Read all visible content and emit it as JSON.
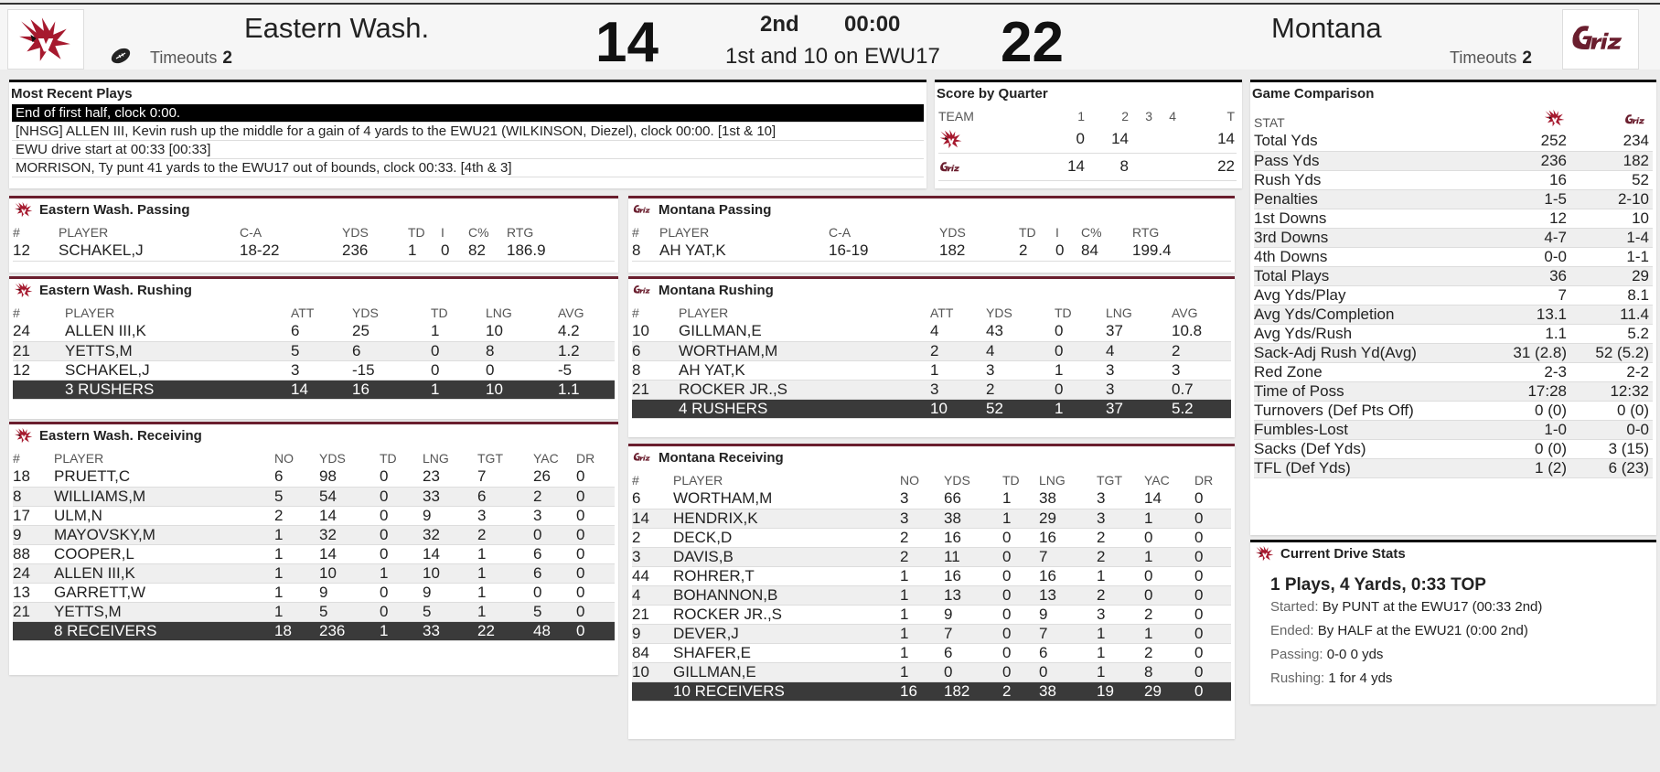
{
  "scoreboard": {
    "away": {
      "name": "Eastern Wash.",
      "score": "14",
      "timeouts_label": "Timeouts",
      "timeouts": "2"
    },
    "home": {
      "name": "Montana",
      "score": "22",
      "timeouts_label": "Timeouts",
      "timeouts": "2"
    },
    "period": "2nd",
    "clock": "00:00",
    "situation": "1st and 10 on EWU17"
  },
  "colors": {
    "ewu_red": "#a6192e",
    "griz_maroon": "#6a1e2e",
    "total_row": "#3a3a3a"
  },
  "recent_plays": {
    "title": "Most Recent Plays",
    "plays": [
      "End of first half, clock 0:00.",
      "[NHSG] ALLEN III, Kevin rush up the middle for a gain of 4 yards to the EWU21 (WILKINSON, Diezel), clock 00:00. [1st & 10]",
      "EWU drive start at 00:33 [00:33]",
      "MORRISON, Ty punt 41 yards to the EWU17 out of bounds, clock 00:33. [4th & 3]"
    ]
  },
  "score_by_quarter": {
    "title": "Score by Quarter",
    "headers": [
      "TEAM",
      "1",
      "2",
      "3",
      "4",
      "T"
    ],
    "rows": [
      {
        "q1": "0",
        "q2": "14",
        "q3": "",
        "q4": "",
        "t": "14"
      },
      {
        "q1": "14",
        "q2": "8",
        "q3": "",
        "q4": "",
        "t": "22"
      }
    ]
  },
  "ewu_passing": {
    "title": "Eastern Wash. Passing",
    "headers": [
      "#",
      "PLAYER",
      "C-A",
      "YDS",
      "TD",
      "I",
      "C%",
      "RTG"
    ],
    "rows": [
      [
        "12",
        "SCHAKEL,J",
        "18-22",
        "236",
        "1",
        "0",
        "82",
        "186.9"
      ]
    ]
  },
  "mt_passing": {
    "title": "Montana Passing",
    "headers": [
      "#",
      "PLAYER",
      "C-A",
      "YDS",
      "TD",
      "I",
      "C%",
      "RTG"
    ],
    "rows": [
      [
        "8",
        "AH YAT,K",
        "16-19",
        "182",
        "2",
        "0",
        "84",
        "199.4"
      ]
    ]
  },
  "ewu_rushing": {
    "title": "Eastern Wash. Rushing",
    "headers": [
      "#",
      "PLAYER",
      "ATT",
      "YDS",
      "TD",
      "LNG",
      "AVG"
    ],
    "rows": [
      [
        "24",
        "ALLEN III,K",
        "6",
        "25",
        "1",
        "10",
        "4.2"
      ],
      [
        "21",
        "YETTS,M",
        "5",
        "6",
        "0",
        "8",
        "1.2"
      ],
      [
        "12",
        "SCHAKEL,J",
        "3",
        "-15",
        "0",
        "0",
        "-5"
      ]
    ],
    "total": [
      "",
      "3 RUSHERS",
      "14",
      "16",
      "1",
      "10",
      "1.1"
    ]
  },
  "mt_rushing": {
    "title": "Montana Rushing",
    "headers": [
      "#",
      "PLAYER",
      "ATT",
      "YDS",
      "TD",
      "LNG",
      "AVG"
    ],
    "rows": [
      [
        "10",
        "GILLMAN,E",
        "4",
        "43",
        "0",
        "37",
        "10.8"
      ],
      [
        "6",
        "WORTHAM,M",
        "2",
        "4",
        "0",
        "4",
        "2"
      ],
      [
        "8",
        "AH YAT,K",
        "1",
        "3",
        "1",
        "3",
        "3"
      ],
      [
        "21",
        "ROCKER JR.,S",
        "3",
        "2",
        "0",
        "3",
        "0.7"
      ]
    ],
    "total": [
      "",
      "4 RUSHERS",
      "10",
      "52",
      "1",
      "37",
      "5.2"
    ]
  },
  "ewu_receiving": {
    "title": "Eastern Wash. Receiving",
    "headers": [
      "#",
      "PLAYER",
      "NO",
      "YDS",
      "TD",
      "LNG",
      "TGT",
      "YAC",
      "DR"
    ],
    "rows": [
      [
        "18",
        "PRUETT,C",
        "6",
        "98",
        "0",
        "23",
        "7",
        "26",
        "0"
      ],
      [
        "8",
        "WILLIAMS,M",
        "5",
        "54",
        "0",
        "33",
        "6",
        "2",
        "0"
      ],
      [
        "17",
        "ULM,N",
        "2",
        "14",
        "0",
        "9",
        "3",
        "3",
        "0"
      ],
      [
        "9",
        "MAYOVSKY,M",
        "1",
        "32",
        "0",
        "32",
        "2",
        "0",
        "0"
      ],
      [
        "88",
        "COOPER,L",
        "1",
        "14",
        "0",
        "14",
        "1",
        "6",
        "0"
      ],
      [
        "24",
        "ALLEN III,K",
        "1",
        "10",
        "1",
        "10",
        "1",
        "6",
        "0"
      ],
      [
        "13",
        "GARRETT,W",
        "1",
        "9",
        "0",
        "9",
        "1",
        "0",
        "0"
      ],
      [
        "21",
        "YETTS,M",
        "1",
        "5",
        "0",
        "5",
        "1",
        "5",
        "0"
      ]
    ],
    "total": [
      "",
      "8 RECEIVERS",
      "18",
      "236",
      "1",
      "33",
      "22",
      "48",
      "0"
    ]
  },
  "mt_receiving": {
    "title": "Montana Receiving",
    "headers": [
      "#",
      "PLAYER",
      "NO",
      "YDS",
      "TD",
      "LNG",
      "TGT",
      "YAC",
      "DR"
    ],
    "rows": [
      [
        "6",
        "WORTHAM,M",
        "3",
        "66",
        "1",
        "38",
        "3",
        "14",
        "0"
      ],
      [
        "14",
        "HENDRIX,K",
        "3",
        "38",
        "1",
        "29",
        "3",
        "1",
        "0"
      ],
      [
        "2",
        "DECK,D",
        "2",
        "16",
        "0",
        "16",
        "2",
        "0",
        "0"
      ],
      [
        "3",
        "DAVIS,B",
        "2",
        "11",
        "0",
        "7",
        "2",
        "1",
        "0"
      ],
      [
        "44",
        "ROHRER,T",
        "1",
        "16",
        "0",
        "16",
        "1",
        "0",
        "0"
      ],
      [
        "4",
        "BOHANNON,B",
        "1",
        "13",
        "0",
        "13",
        "2",
        "0",
        "0"
      ],
      [
        "21",
        "ROCKER JR.,S",
        "1",
        "9",
        "0",
        "9",
        "3",
        "2",
        "0"
      ],
      [
        "9",
        "DEVER,J",
        "1",
        "7",
        "0",
        "7",
        "1",
        "1",
        "0"
      ],
      [
        "84",
        "SHAFER,E",
        "1",
        "6",
        "0",
        "6",
        "1",
        "2",
        "0"
      ],
      [
        "10",
        "GILLMAN,E",
        "1",
        "0",
        "0",
        "0",
        "1",
        "8",
        "0"
      ]
    ],
    "total": [
      "",
      "10 RECEIVERS",
      "16",
      "182",
      "2",
      "38",
      "19",
      "29",
      "0"
    ]
  },
  "comparison": {
    "title": "Game Comparison",
    "stat_header": "STAT",
    "rows": [
      [
        "Total Yds",
        "252",
        "234"
      ],
      [
        "Pass Yds",
        "236",
        "182"
      ],
      [
        "Rush Yds",
        "16",
        "52"
      ],
      [
        "Penalties",
        "1-5",
        "2-10"
      ],
      [
        "1st Downs",
        "12",
        "10"
      ],
      [
        "3rd Downs",
        "4-7",
        "1-4"
      ],
      [
        "4th Downs",
        "0-0",
        "1-1"
      ],
      [
        "Total Plays",
        "36",
        "29"
      ],
      [
        "Avg Yds/Play",
        "7",
        "8.1"
      ],
      [
        "Avg Yds/Completion",
        "13.1",
        "11.4"
      ],
      [
        "Avg Yds/Rush",
        "1.1",
        "5.2"
      ],
      [
        "Sack-Adj Rush Yd(Avg)",
        "31 (2.8)",
        "52 (5.2)"
      ],
      [
        "Red Zone",
        "2-3",
        "2-2"
      ],
      [
        "Time of Poss",
        "17:28",
        "12:32"
      ],
      [
        "Turnovers (Def Pts Off)",
        "0 (0)",
        "0 (0)"
      ],
      [
        "Fumbles-Lost",
        "1-0",
        "0-0"
      ],
      [
        "Sacks (Def Yds)",
        "0 (0)",
        "3 (15)"
      ],
      [
        "TFL (Def Yds)",
        "1 (2)",
        "6 (23)"
      ]
    ]
  },
  "drive": {
    "title": "Current Drive Stats",
    "summary": "1 Plays, 4 Yards, 0:33 TOP",
    "started_label": "Started:",
    "started": "By PUNT at the EWU17 (00:33 2nd)",
    "ended_label": "Ended:",
    "ended": "By HALF at the EWU21 (0:00 2nd)",
    "passing_label": "Passing:",
    "passing": "0-0 0 yds",
    "rushing_label": "Rushing:",
    "rushing": "1 for 4 yds"
  },
  "icons": {
    "away_logo": "eagle-logo-icon",
    "home_logo": "griz-logo-icon",
    "possession": "football-icon"
  }
}
